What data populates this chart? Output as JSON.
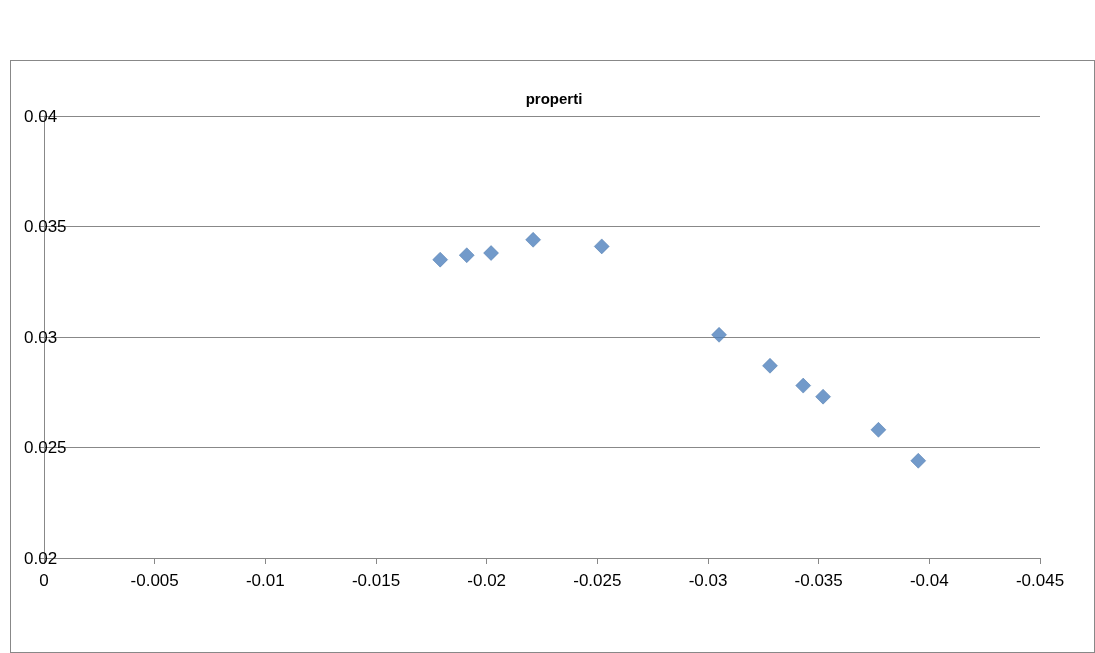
{
  "chart_data": {
    "type": "scatter",
    "title": "properti",
    "x": [
      -0.0179,
      -0.0191,
      -0.0202,
      -0.0221,
      -0.0252,
      -0.0305,
      -0.0328,
      -0.0343,
      -0.0352,
      -0.0377,
      -0.0395
    ],
    "values": [
      0.0335,
      0.0337,
      0.0338,
      0.0344,
      0.0341,
      0.0301,
      0.0287,
      0.0278,
      0.0273,
      0.0258,
      0.0244
    ],
    "color": "#4f81bd",
    "marker": "diamond",
    "xlim": [
      0,
      -0.045
    ],
    "xticks": [
      0,
      -0.005,
      -0.01,
      -0.015,
      -0.02,
      -0.025,
      -0.03,
      -0.035,
      -0.04,
      -0.045
    ],
    "ylim": [
      0.02,
      0.04
    ],
    "yticks": [
      0.02,
      0.025,
      0.03,
      0.035,
      0.04
    ],
    "grid": "y"
  }
}
